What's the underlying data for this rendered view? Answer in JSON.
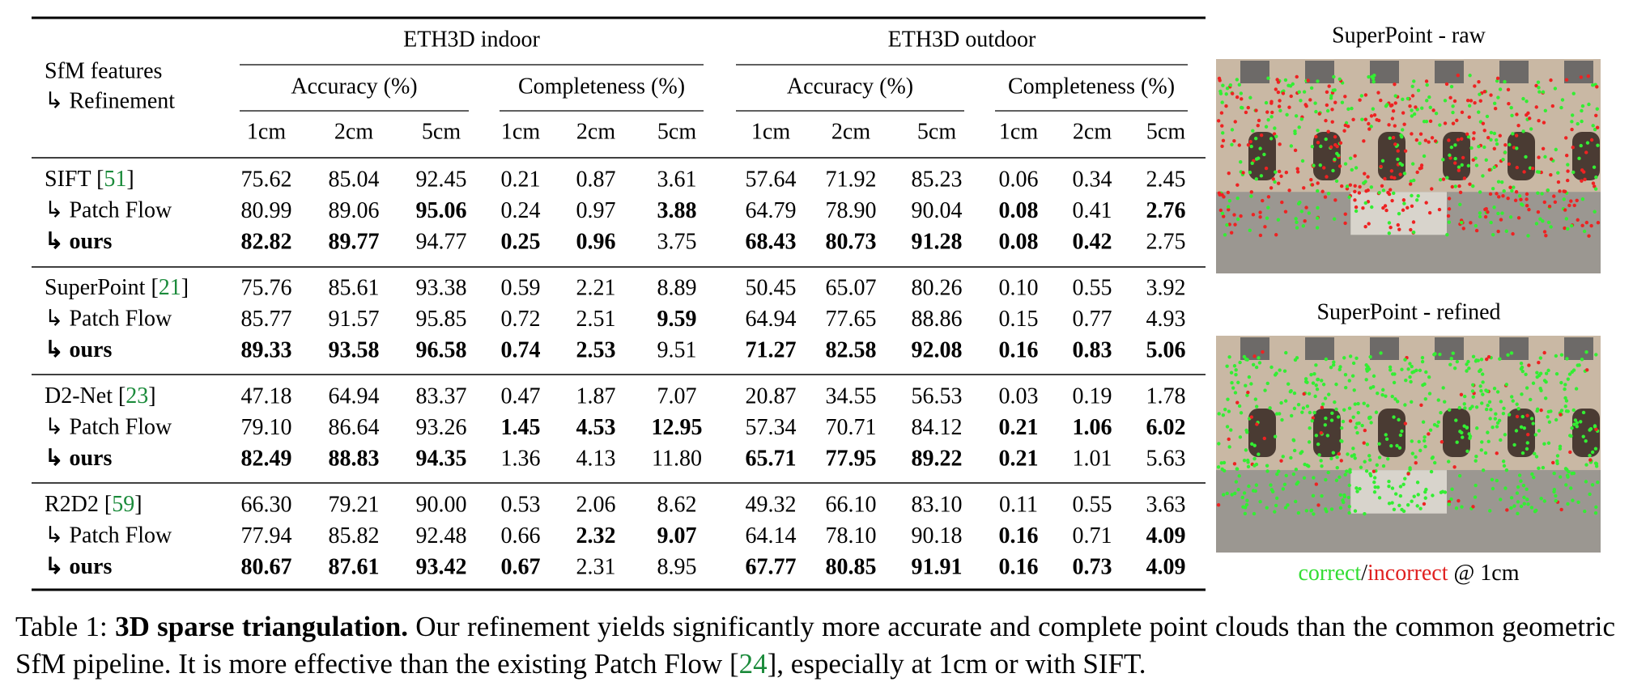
{
  "table": {
    "header": {
      "row_label": "SfM features",
      "row_sublabel": "↳ Refinement",
      "groups": [
        {
          "title": "ETH3D indoor",
          "subgroups": [
            {
              "title": "Accuracy (%)",
              "columns": [
                "1cm",
                "2cm",
                "5cm"
              ]
            },
            {
              "title": "Completeness (%)",
              "columns": [
                "1cm",
                "2cm",
                "5cm"
              ]
            }
          ]
        },
        {
          "title": "ETH3D outdoor",
          "subgroups": [
            {
              "title": "Accuracy (%)",
              "columns": [
                "1cm",
                "2cm",
                "5cm"
              ]
            },
            {
              "title": "Completeness (%)",
              "columns": [
                "1cm",
                "2cm",
                "5cm"
              ]
            }
          ]
        }
      ]
    },
    "blocks": [
      {
        "rows": [
          {
            "label": "SIFT [",
            "cite": "51",
            "label_end": "]",
            "cells": [
              "75.62",
              "85.04",
              "92.45",
              "0.21",
              "0.87",
              "3.61",
              "57.64",
              "71.92",
              "85.23",
              "0.06",
              "0.34",
              "2.45"
            ],
            "bold": []
          },
          {
            "label": "↳ Patch Flow",
            "cells": [
              "80.99",
              "89.06",
              "95.06",
              "0.24",
              "0.97",
              "3.88",
              "64.79",
              "78.90",
              "90.04",
              "0.08",
              "0.41",
              "2.76"
            ],
            "bold": [
              2,
              5,
              9,
              11
            ]
          },
          {
            "label": "↳ ours",
            "label_bold": true,
            "cells": [
              "82.82",
              "89.77",
              "94.77",
              "0.25",
              "0.96",
              "3.75",
              "68.43",
              "80.73",
              "91.28",
              "0.08",
              "0.42",
              "2.75"
            ],
            "bold": [
              0,
              1,
              3,
              4,
              6,
              7,
              8,
              9,
              10
            ]
          }
        ]
      },
      {
        "rows": [
          {
            "label": "SuperPoint [",
            "cite": "21",
            "label_end": "]",
            "cells": [
              "75.76",
              "85.61",
              "93.38",
              "0.59",
              "2.21",
              "8.89",
              "50.45",
              "65.07",
              "80.26",
              "0.10",
              "0.55",
              "3.92"
            ],
            "bold": []
          },
          {
            "label": "↳ Patch Flow",
            "cells": [
              "85.77",
              "91.57",
              "95.85",
              "0.72",
              "2.51",
              "9.59",
              "64.94",
              "77.65",
              "88.86",
              "0.15",
              "0.77",
              "4.93"
            ],
            "bold": [
              5
            ]
          },
          {
            "label": "↳ ours",
            "label_bold": true,
            "cells": [
              "89.33",
              "93.58",
              "96.58",
              "0.74",
              "2.53",
              "9.51",
              "71.27",
              "82.58",
              "92.08",
              "0.16",
              "0.83",
              "5.06"
            ],
            "bold": [
              0,
              1,
              2,
              3,
              4,
              6,
              7,
              8,
              9,
              10,
              11
            ]
          }
        ]
      },
      {
        "rows": [
          {
            "label": "D2-Net [",
            "cite": "23",
            "label_end": "]",
            "cells": [
              "47.18",
              "64.94",
              "83.37",
              "0.47",
              "1.87",
              "7.07",
              "20.87",
              "34.55",
              "56.53",
              "0.03",
              "0.19",
              "1.78"
            ],
            "bold": []
          },
          {
            "label": "↳ Patch Flow",
            "cells": [
              "79.10",
              "86.64",
              "93.26",
              "1.45",
              "4.53",
              "12.95",
              "57.34",
              "70.71",
              "84.12",
              "0.21",
              "1.06",
              "6.02"
            ],
            "bold": [
              3,
              4,
              5,
              9,
              10,
              11
            ]
          },
          {
            "label": "↳ ours",
            "label_bold": true,
            "cells": [
              "82.49",
              "88.83",
              "94.35",
              "1.36",
              "4.13",
              "11.80",
              "65.71",
              "77.95",
              "89.22",
              "0.21",
              "1.01",
              "5.63"
            ],
            "bold": [
              0,
              1,
              2,
              6,
              7,
              8,
              9
            ]
          }
        ]
      },
      {
        "rows": [
          {
            "label": "R2D2 [",
            "cite": "59",
            "label_end": "]",
            "cells": [
              "66.30",
              "79.21",
              "90.00",
              "0.53",
              "2.06",
              "8.62",
              "49.32",
              "66.10",
              "83.10",
              "0.11",
              "0.55",
              "3.63"
            ],
            "bold": []
          },
          {
            "label": "↳ Patch Flow",
            "cells": [
              "77.94",
              "85.82",
              "92.48",
              "0.66",
              "2.32",
              "9.07",
              "64.14",
              "78.10",
              "90.18",
              "0.16",
              "0.71",
              "4.09"
            ],
            "bold": [
              4,
              5,
              9,
              11
            ]
          },
          {
            "label": "↳ ours",
            "label_bold": true,
            "cells": [
              "80.67",
              "87.61",
              "93.42",
              "0.67",
              "2.31",
              "8.95",
              "67.77",
              "80.85",
              "91.91",
              "0.16",
              "0.73",
              "4.09"
            ],
            "bold": [
              0,
              1,
              2,
              3,
              6,
              7,
              8,
              9,
              10,
              11
            ]
          }
        ]
      }
    ]
  },
  "figure": {
    "panels": [
      {
        "title": "SuperPoint - raw"
      },
      {
        "title": "SuperPoint - refined"
      }
    ],
    "legend": {
      "correct": "correct",
      "separator": "/",
      "incorrect": "incorrect",
      "suffix": " @ 1cm"
    }
  },
  "caption": {
    "prefix": "Table 1: ",
    "bold": "3D sparse triangulation.",
    "text": " Our refinement yields significantly more accurate and complete point clouds than the common geometric SfM pipeline. It is more effective than the existing Patch Flow [",
    "cite": "24",
    "text_end": "], especially at 1cm or with SIFT."
  }
}
